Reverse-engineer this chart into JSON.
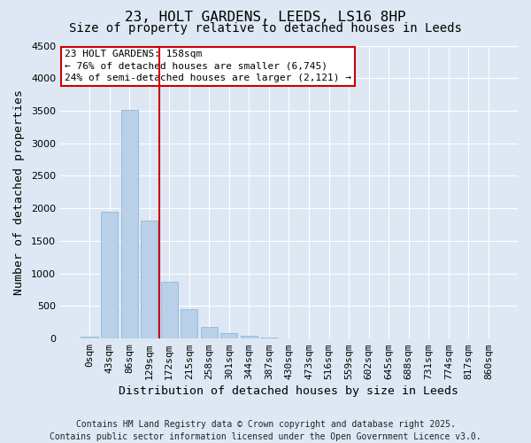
{
  "title": "23, HOLT GARDENS, LEEDS, LS16 8HP",
  "subtitle": "Size of property relative to detached houses in Leeds",
  "xlabel": "Distribution of detached houses by size in Leeds",
  "ylabel": "Number of detached properties",
  "bar_labels": [
    "0sqm",
    "43sqm",
    "86sqm",
    "129sqm",
    "172sqm",
    "215sqm",
    "258sqm",
    "301sqm",
    "344sqm",
    "387sqm",
    "430sqm",
    "473sqm",
    "516sqm",
    "559sqm",
    "602sqm",
    "645sqm",
    "688sqm",
    "731sqm",
    "774sqm",
    "817sqm",
    "860sqm"
  ],
  "bar_values": [
    30,
    1950,
    3510,
    1810,
    870,
    450,
    175,
    90,
    40,
    10,
    0,
    0,
    0,
    0,
    0,
    0,
    0,
    0,
    0,
    0,
    0
  ],
  "bar_color": "#b8d0e8",
  "bar_edge_color": "#90b8d8",
  "vline_color": "#cc0000",
  "vline_x_index": 3.5,
  "ylim": [
    0,
    4500
  ],
  "yticks": [
    0,
    500,
    1000,
    1500,
    2000,
    2500,
    3000,
    3500,
    4000,
    4500
  ],
  "annotation_title": "23 HOLT GARDENS: 158sqm",
  "annotation_line1": "← 76% of detached houses are smaller (6,745)",
  "annotation_line2": "24% of semi-detached houses are larger (2,121) →",
  "annotation_box_color": "#ffffff",
  "annotation_box_edge": "#cc0000",
  "footer1": "Contains HM Land Registry data © Crown copyright and database right 2025.",
  "footer2": "Contains public sector information licensed under the Open Government Licence v3.0.",
  "bg_color": "#dde8f4",
  "grid_color": "#ffffff",
  "title_fontsize": 11.5,
  "subtitle_fontsize": 10,
  "axis_label_fontsize": 9.5,
  "tick_fontsize": 8,
  "annotation_fontsize": 8,
  "footer_fontsize": 7
}
